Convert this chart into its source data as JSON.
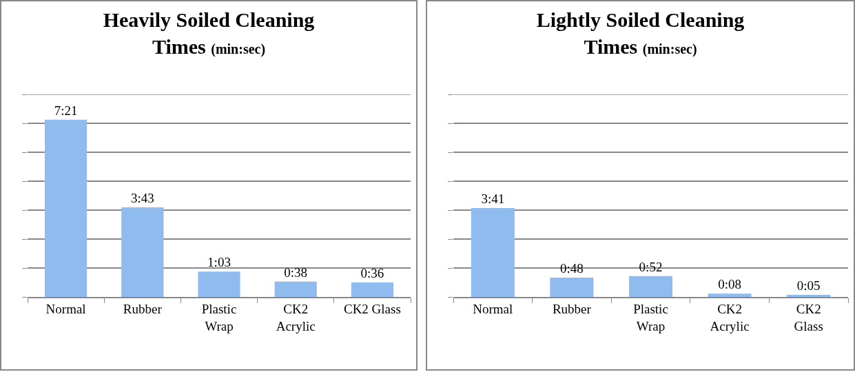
{
  "chart_data": [
    {
      "type": "bar",
      "title": "Heavily Soiled Cleaning Times",
      "subtitle": "(min:sec)",
      "categories": [
        "Normal",
        "Rubber",
        "Plastic Wrap",
        "CK2 Acrylic",
        "CK2 Glass"
      ],
      "values": [
        441,
        223,
        63,
        38,
        36
      ],
      "value_labels": [
        "7:21",
        "3:43",
        "1:03",
        "0:38",
        "0:36"
      ],
      "color": "#8fbbee",
      "relative": false,
      "ylim": [
        0,
        504
      ],
      "yticks": [
        {
          "value": 0,
          "label": null
        },
        {
          "value": 72,
          "label": null
        },
        {
          "value": 144,
          "label": null
        },
        {
          "value": 216,
          "label": null
        },
        {
          "value": 288,
          "label": null
        },
        {
          "value": 360,
          "label": null
        },
        {
          "value": 432,
          "label": null
        },
        {
          "value": 504,
          "label": null
        }
      ],
      "grid": "y",
      "tick_labels": "x"
    },
    {
      "type": "bar",
      "title": "Lightly Soiled Cleaning Times",
      "subtitle": "(min:sec)",
      "categories": [
        "Normal",
        "Rubber",
        "Plastic Wrap",
        "CK2 Acrylic",
        "CK2 Glass"
      ],
      "values": [
        221,
        48,
        52,
        8,
        5
      ],
      "value_labels": [
        "3:41",
        "0:48",
        "0:52",
        "0:08",
        "0:05"
      ],
      "color": "#8fbbee",
      "relative": false,
      "ylim": [
        0,
        504
      ],
      "yticks": [
        {
          "value": 0,
          "label": null
        },
        {
          "value": 72,
          "label": null
        },
        {
          "value": 144,
          "label": null
        },
        {
          "value": 216,
          "label": null
        },
        {
          "value": 288,
          "label": null
        },
        {
          "value": 360,
          "label": null
        },
        {
          "value": 432,
          "label": null
        },
        {
          "value": 504,
          "label": null
        }
      ],
      "grid": "y",
      "tick_labels": "x"
    }
  ]
}
